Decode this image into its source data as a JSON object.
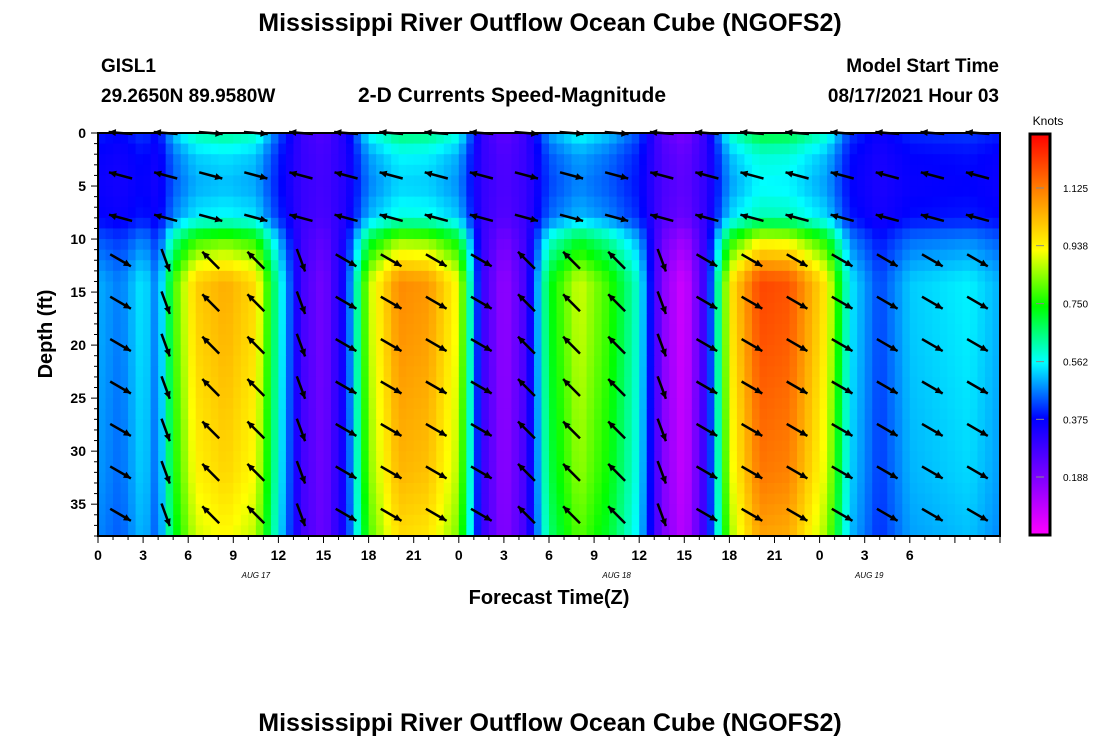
{
  "page": {
    "title_top": "Mississippi River Outflow Ocean Cube (NGOFS2)",
    "title_bottom": "Mississippi River Outflow Ocean Cube (NGOFS2)",
    "station_id": "GISL1",
    "station_coords": "29.2650N  89.9580W",
    "product": "2-D Currents Speed-Magnitude",
    "model_start_label": "Model Start Time",
    "model_start_value": "08/17/2021 Hour 03"
  },
  "colors": {
    "colormap": [
      "#ff00ff",
      "#8000ff",
      "#0000ff",
      "#00ffff",
      "#00ff00",
      "#ffff00",
      "#ff8000",
      "#ff0000"
    ],
    "arrow": "#000000",
    "frame": "#000000"
  },
  "chart_data": {
    "type": "heatmap",
    "xlabel": "Forecast Time(Z)",
    "ylabel": "Depth (ft)",
    "colorbar_label": "Knots",
    "x_hours": [
      0,
      60
    ],
    "y_depth_ft": [
      0,
      38
    ],
    "y_reversed": true,
    "x_ticks": [
      {
        "h": 0,
        "label": "0"
      },
      {
        "h": 3,
        "label": "3"
      },
      {
        "h": 6,
        "label": "6"
      },
      {
        "h": 9,
        "label": "9"
      },
      {
        "h": 12,
        "label": "12"
      },
      {
        "h": 15,
        "label": "15"
      },
      {
        "h": 18,
        "label": "18"
      },
      {
        "h": 21,
        "label": "21"
      },
      {
        "h": 24,
        "label": "0"
      },
      {
        "h": 27,
        "label": "3"
      },
      {
        "h": 30,
        "label": "6"
      },
      {
        "h": 33,
        "label": "9"
      },
      {
        "h": 36,
        "label": "12"
      },
      {
        "h": 39,
        "label": "15"
      },
      {
        "h": 42,
        "label": "18"
      },
      {
        "h": 45,
        "label": "21"
      },
      {
        "h": 48,
        "label": "0"
      },
      {
        "h": 51,
        "label": "3"
      },
      {
        "h": 54,
        "label": "6"
      }
    ],
    "date_labels": [
      {
        "h": 10.5,
        "label": "AUG 17"
      },
      {
        "h": 34.5,
        "label": "AUG 18"
      },
      {
        "h": 51.3,
        "label": "AUG 19"
      }
    ],
    "y_ticks": [
      {
        "v": 0,
        "label": "0"
      },
      {
        "v": 5,
        "label": "5"
      },
      {
        "v": 10,
        "label": "10"
      },
      {
        "v": 15,
        "label": "15"
      },
      {
        "v": 20,
        "label": "20"
      },
      {
        "v": 25,
        "label": "25"
      },
      {
        "v": 30,
        "label": "30"
      },
      {
        "v": 35,
        "label": "35"
      }
    ],
    "colorbar_range": [
      0,
      1.3
    ],
    "colorbar_ticks": [
      {
        "v": 0.188,
        "label": "0.188"
      },
      {
        "v": 0.375,
        "label": "0.375"
      },
      {
        "v": 0.562,
        "label": "0.562"
      },
      {
        "v": 0.75,
        "label": "0.750"
      },
      {
        "v": 0.938,
        "label": "0.938"
      },
      {
        "v": 1.125,
        "label": "1.125"
      }
    ],
    "depth_profile": [
      {
        "depth": 0,
        "value": 0.45
      },
      {
        "depth": 2,
        "value": 0.32
      },
      {
        "depth": 5,
        "value": 0.28
      },
      {
        "depth": 8,
        "value": 0.35
      },
      {
        "depth": 10,
        "value": 0.68
      },
      {
        "depth": 14,
        "value": 1.0
      },
      {
        "depth": 20,
        "value": 0.98
      },
      {
        "depth": 26,
        "value": 0.95
      },
      {
        "depth": 32,
        "value": 0.92
      },
      {
        "depth": 38,
        "value": 0.85
      }
    ],
    "time_envelope": [
      {
        "h": 0,
        "peak": 0.5,
        "dir": 1
      },
      {
        "h": 1.5,
        "peak": 0.46,
        "dir": 1
      },
      {
        "h": 3,
        "peak": 0.55,
        "dir": 1
      },
      {
        "h": 4,
        "peak": 0.45,
        "dir": 0
      },
      {
        "h": 5,
        "peak": 0.78,
        "dir": -1
      },
      {
        "h": 6.5,
        "peak": 1.0,
        "dir": -1
      },
      {
        "h": 8.5,
        "peak": 1.05,
        "dir": -1
      },
      {
        "h": 10.5,
        "peak": 0.98,
        "dir": -1
      },
      {
        "h": 12,
        "peak": 0.6,
        "dir": -1
      },
      {
        "h": 13.5,
        "peak": 0.28,
        "dir": 0
      },
      {
        "h": 15,
        "peak": 0.2,
        "dir": 1
      },
      {
        "h": 16.5,
        "peak": 0.38,
        "dir": 1
      },
      {
        "h": 18,
        "peak": 0.88,
        "dir": 1
      },
      {
        "h": 20,
        "peak": 1.1,
        "dir": 1
      },
      {
        "h": 22,
        "peak": 1.08,
        "dir": 1
      },
      {
        "h": 24,
        "peak": 0.92,
        "dir": 1
      },
      {
        "h": 25.5,
        "peak": 0.3,
        "dir": 1
      },
      {
        "h": 27,
        "peak": 0.15,
        "dir": 0
      },
      {
        "h": 28.5,
        "peak": 0.28,
        "dir": -1
      },
      {
        "h": 30,
        "peak": 0.72,
        "dir": -1
      },
      {
        "h": 32,
        "peak": 0.9,
        "dir": -1
      },
      {
        "h": 34,
        "peak": 0.78,
        "dir": -1
      },
      {
        "h": 36,
        "peak": 0.58,
        "dir": -1
      },
      {
        "h": 37.5,
        "peak": 0.18,
        "dir": 0
      },
      {
        "h": 39,
        "peak": 0.06,
        "dir": 1
      },
      {
        "h": 40.5,
        "peak": 0.32,
        "dir": 1
      },
      {
        "h": 42,
        "peak": 0.95,
        "dir": 1
      },
      {
        "h": 44,
        "peak": 1.2,
        "dir": 1
      },
      {
        "h": 46,
        "peak": 1.18,
        "dir": 1
      },
      {
        "h": 48.5,
        "peak": 0.95,
        "dir": 1
      },
      {
        "h": 50,
        "peak": 0.55,
        "dir": 1
      },
      {
        "h": 52,
        "peak": 0.42,
        "dir": 1
      },
      {
        "h": 54,
        "peak": 0.52,
        "dir": 1
      },
      {
        "h": 58,
        "peak": 0.55,
        "dir": 1
      },
      {
        "h": 60,
        "peak": 0.5,
        "dir": 1
      }
    ],
    "arrow_hours": [
      1.5,
      4.5,
      7.5,
      10.5,
      13.5,
      16.5,
      19.5,
      22.5,
      25.5,
      28.5,
      31.5,
      34.5,
      37.5,
      40.5,
      43.5,
      46.5,
      49.5,
      52.5,
      55.5,
      58.5
    ],
    "arrow_depths": [
      0,
      4,
      8,
      12,
      16,
      20,
      24,
      28,
      32,
      36
    ]
  }
}
